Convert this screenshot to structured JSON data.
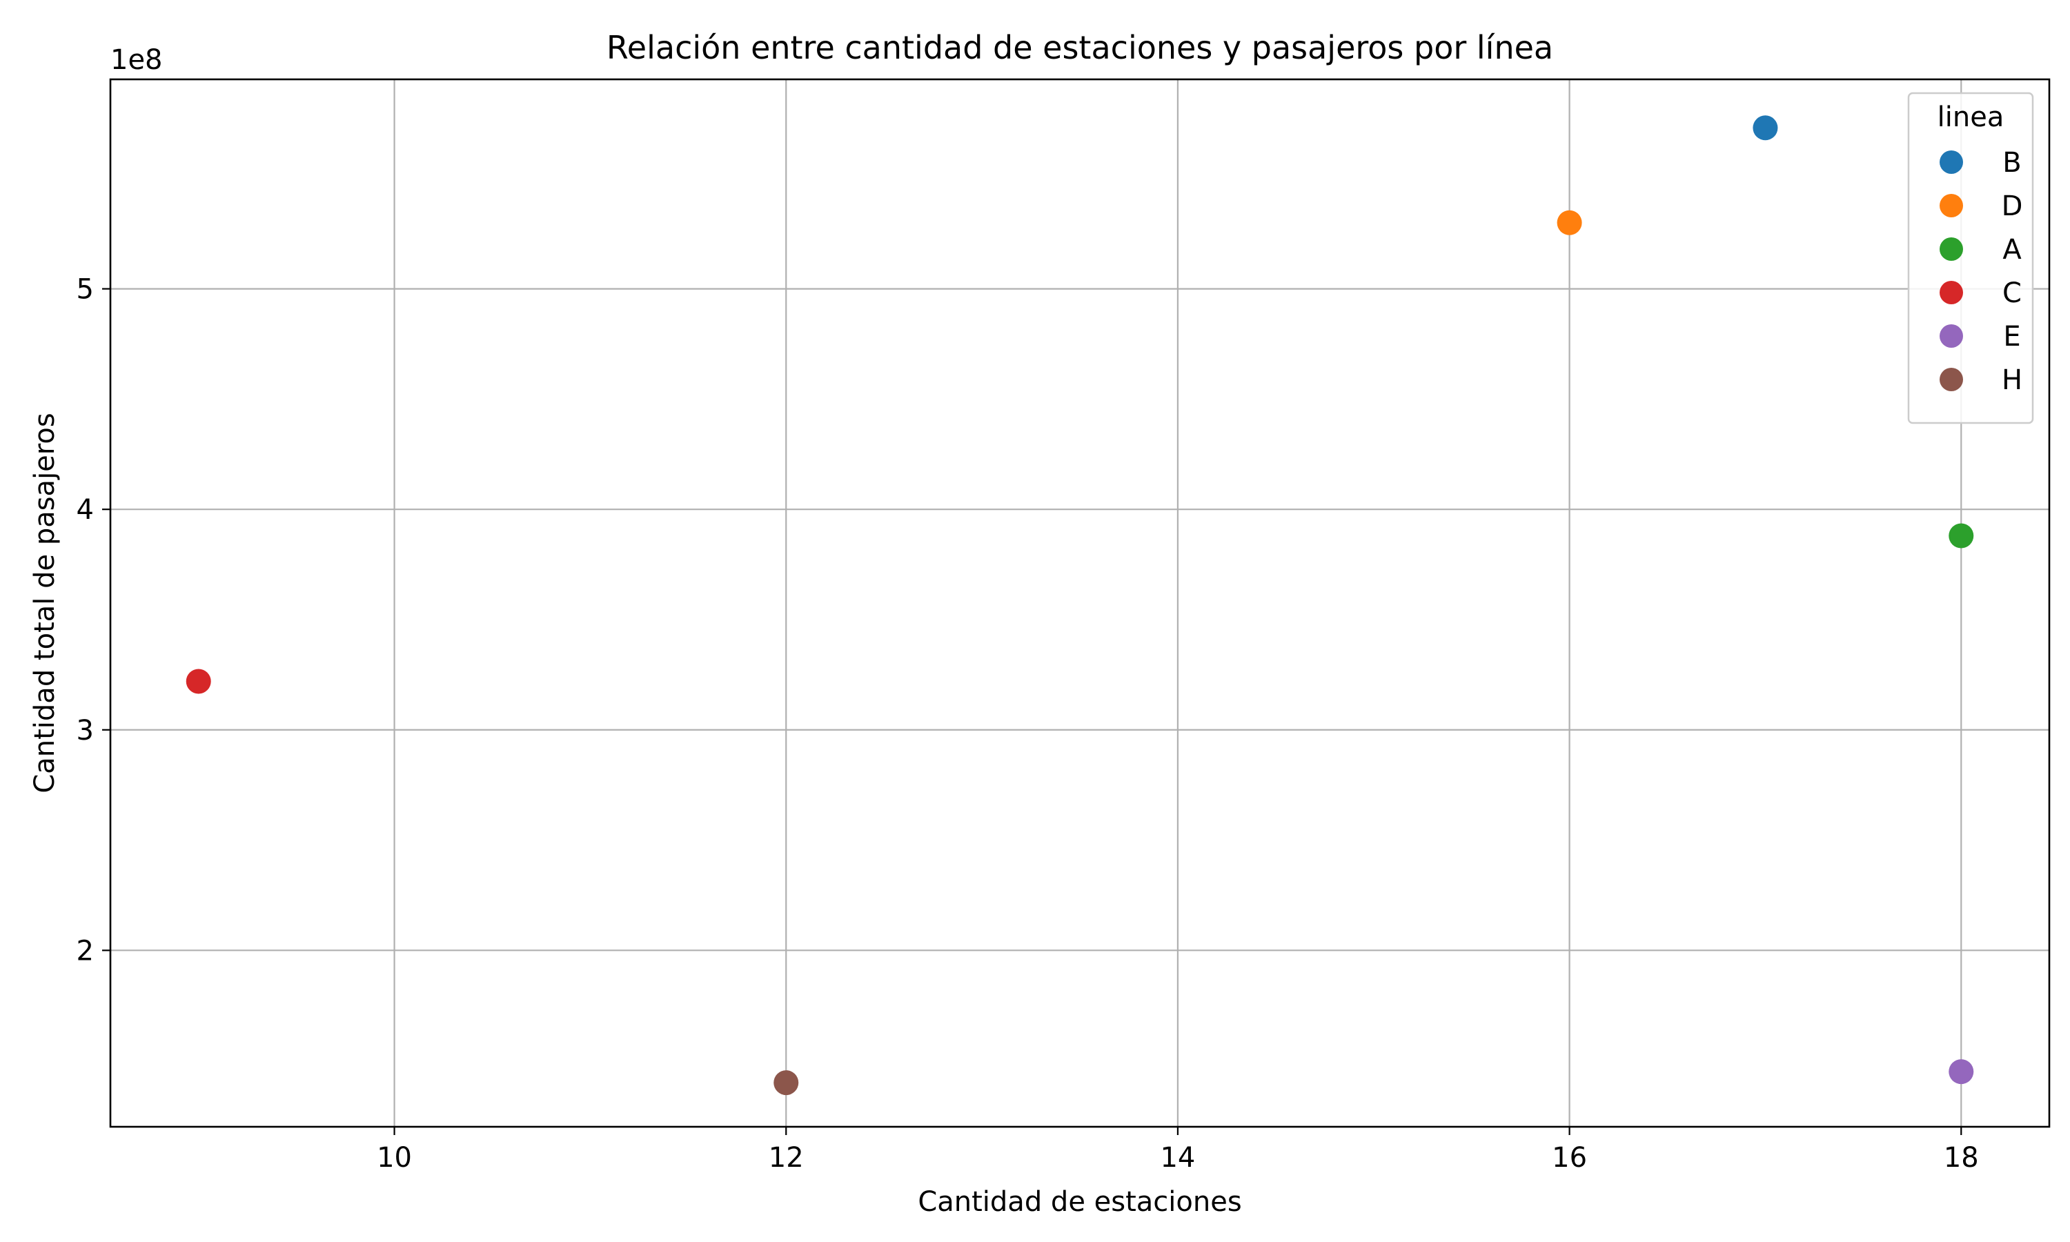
{
  "chart_data": {
    "type": "scatter",
    "title": "Relación entre cantidad de estaciones y pasajeros por línea",
    "xlabel": "Cantidad de estaciones",
    "ylabel": "Cantidad total de pasajeros",
    "y_offset_label": "1e8",
    "xlim": [
      8.55,
      18.45
    ],
    "ylim": [
      1.2,
      5.95
    ],
    "x_ticks": [
      10,
      12,
      14,
      16,
      18
    ],
    "x_tick_labels": [
      "10",
      "12",
      "14",
      "16",
      "18"
    ],
    "y_ticks": [
      2,
      3,
      4,
      5
    ],
    "y_tick_labels": [
      "2",
      "3",
      "4",
      "5"
    ],
    "grid": true,
    "legend": {
      "title": "linea",
      "placement": "top-right"
    },
    "series": [
      {
        "name": "B",
        "color": "#1f77b4",
        "x": [
          17
        ],
        "y": [
          5.73
        ]
      },
      {
        "name": "D",
        "color": "#ff7f0e",
        "x": [
          16
        ],
        "y": [
          5.3
        ]
      },
      {
        "name": "A",
        "color": "#2ca02c",
        "x": [
          18
        ],
        "y": [
          3.88
        ]
      },
      {
        "name": "C",
        "color": "#d62728",
        "x": [
          9
        ],
        "y": [
          3.22
        ]
      },
      {
        "name": "E",
        "color": "#9467bd",
        "x": [
          18
        ],
        "y": [
          1.45
        ]
      },
      {
        "name": "H",
        "color": "#8c564b",
        "x": [
          12
        ],
        "y": [
          1.4
        ]
      }
    ]
  }
}
